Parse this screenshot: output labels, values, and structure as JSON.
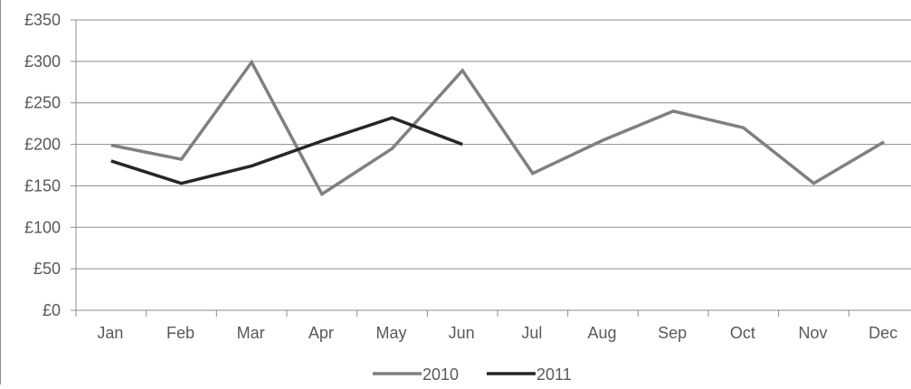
{
  "chart_data": {
    "type": "line",
    "categories": [
      "Jan",
      "Feb",
      "Mar",
      "Apr",
      "May",
      "Jun",
      "Jul",
      "Aug",
      "Sep",
      "Oct",
      "Nov",
      "Dec"
    ],
    "y_ticks": [
      "£0",
      "£50",
      "£100",
      "£150",
      "£200",
      "£250",
      "£300",
      "£350"
    ],
    "ylim": [
      0,
      350
    ],
    "y_tick_step": 50,
    "grid": "horizontal",
    "legend_position": "bottom-center",
    "series": [
      {
        "name": "2010",
        "color": "#808080",
        "values": [
          199,
          182,
          299,
          140,
          195,
          289,
          165,
          205,
          240,
          220,
          153,
          203
        ]
      },
      {
        "name": "2011",
        "color": "#262626",
        "values": [
          180,
          153,
          174,
          204,
          232,
          200,
          null,
          null,
          null,
          null,
          null,
          null
        ]
      }
    ]
  }
}
